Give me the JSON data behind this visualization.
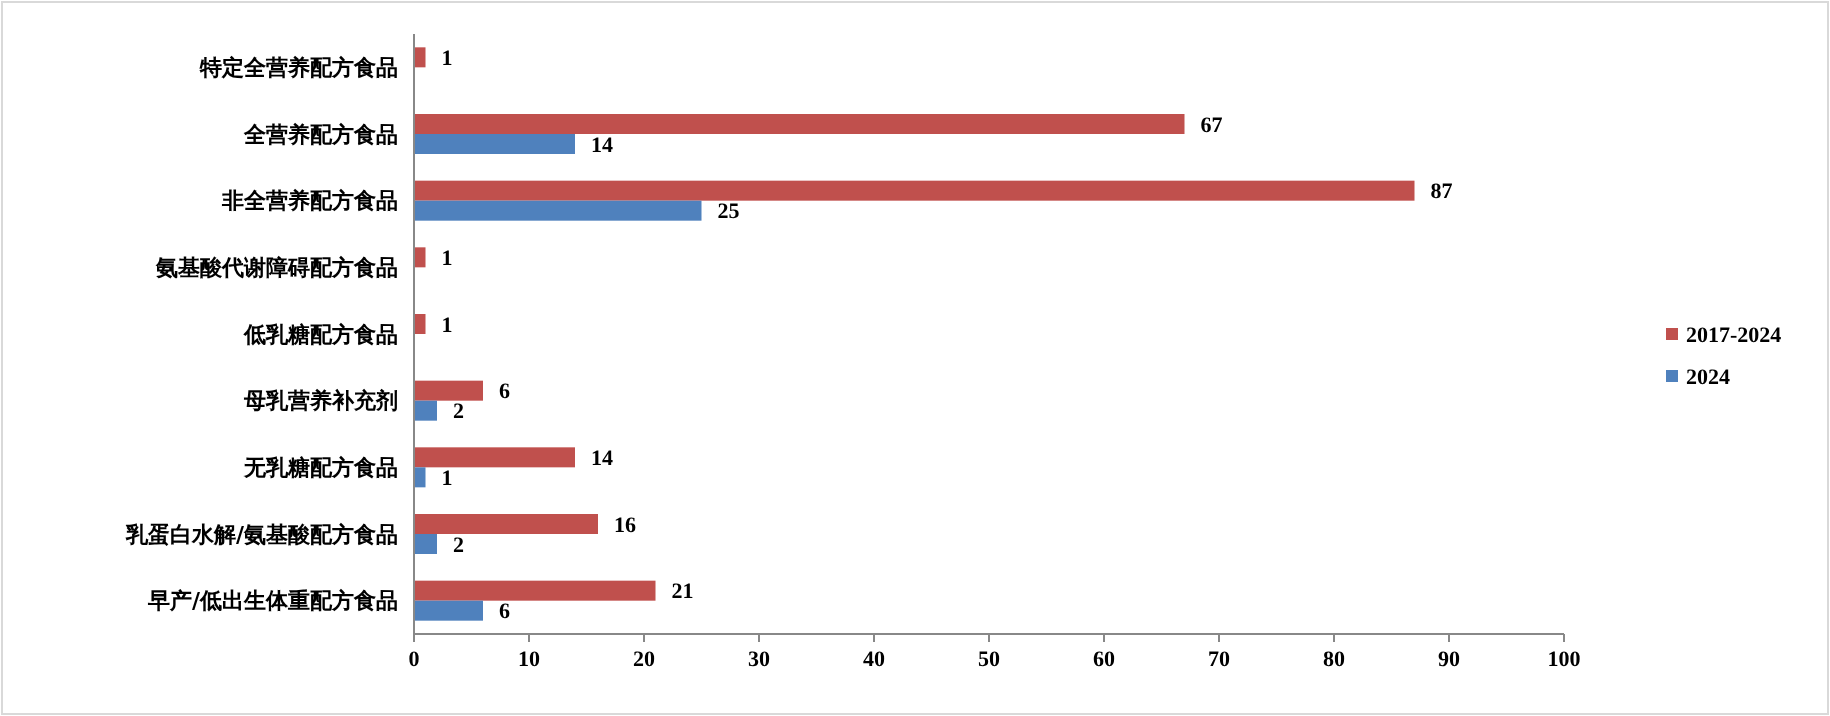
{
  "chart_data": {
    "type": "bar",
    "orientation": "horizontal",
    "categories": [
      "特定全营养配方食品",
      "全营养配方食品",
      "非全营养配方食品",
      "氨基酸代谢障碍配方食品",
      "低乳糖配方食品",
      "母乳营养补充剂",
      "无乳糖配方食品",
      "乳蛋白水解/氨基酸配方食品",
      "早产/低出生体重配方食品"
    ],
    "series": [
      {
        "name": "2017-2024",
        "color": "#c0504d",
        "values": [
          1,
          67,
          87,
          1,
          1,
          6,
          14,
          16,
          21
        ]
      },
      {
        "name": "2024",
        "color": "#4f81bd",
        "values": [
          null,
          14,
          25,
          null,
          null,
          2,
          1,
          2,
          6
        ]
      }
    ],
    "xlim": [
      0,
      100
    ],
    "xticks": [
      0,
      10,
      20,
      30,
      40,
      50,
      60,
      70,
      80,
      90,
      100
    ],
    "data_labels": true,
    "legend": "right",
    "grid": false
  }
}
